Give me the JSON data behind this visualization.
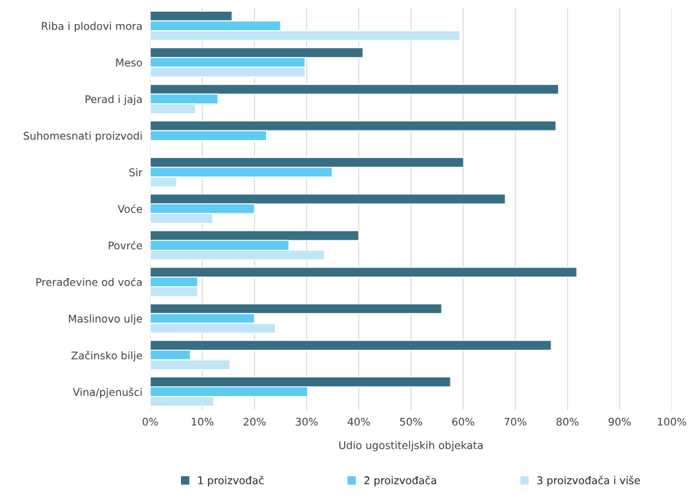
{
  "chart_data": {
    "type": "bar",
    "orientation": "horizontal",
    "categories": [
      "Riba i plodovi mora",
      "Meso",
      "Perad i jaja",
      "Suhomesnati proizvodi",
      "Sir",
      "Voće",
      "Povrće",
      "Prerađevine od voća",
      "Maslinovo ulje",
      "Začinsko bilje",
      "Vina/pjenušci"
    ],
    "series": [
      {
        "name": "1 proizvođač",
        "color": "#376e84",
        "values": [
          15.7,
          40.8,
          78.3,
          77.8,
          60.1,
          68.1,
          40.0,
          81.8,
          55.9,
          76.9,
          57.6
        ]
      },
      {
        "name": "2 proizvođača",
        "color": "#5ecbf2",
        "values": [
          25.0,
          29.7,
          13.0,
          22.3,
          34.9,
          20.0,
          26.6,
          9.1,
          20.0,
          7.7,
          30.2
        ]
      },
      {
        "name": "3 proizvođača i više",
        "color": "#c0e6f5",
        "values": [
          59.4,
          29.7,
          8.7,
          null,
          5.1,
          12.0,
          33.4,
          9.1,
          24.0,
          15.3,
          12.2
        ]
      }
    ],
    "xlabel": "Udio ugostiteljskih objekata",
    "xlim": [
      0,
      100
    ],
    "xticks": [
      {
        "value": 0,
        "label": "0%"
      },
      {
        "value": 10,
        "label": "10%"
      },
      {
        "value": 20,
        "label": "20%"
      },
      {
        "value": 30,
        "label": "30%"
      },
      {
        "value": 40,
        "label": "40%"
      },
      {
        "value": 50,
        "label": "50%"
      },
      {
        "value": 60,
        "label": "60%"
      },
      {
        "value": 70,
        "label": "70%"
      },
      {
        "value": 80,
        "label": "80%"
      },
      {
        "value": 90,
        "label": "90%"
      },
      {
        "value": 100,
        "label": "100%"
      }
    ],
    "grid": "x",
    "legend": "bottom"
  }
}
